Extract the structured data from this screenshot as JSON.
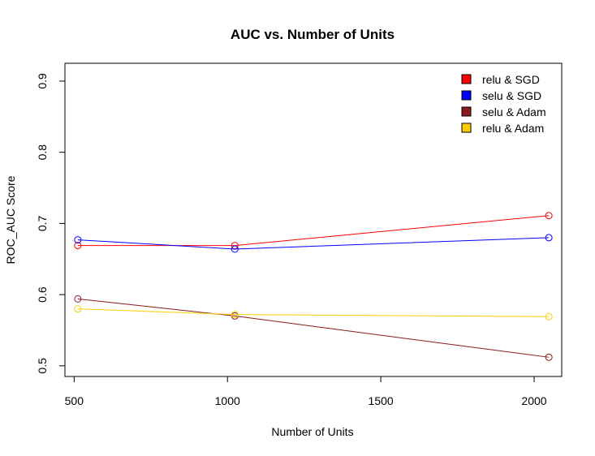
{
  "chart_data": {
    "type": "line",
    "title": "AUC vs. Number of Units",
    "xlabel": "Number of Units",
    "ylabel": "ROC_AUC Score",
    "xlim": [
      470,
      2090
    ],
    "ylim": [
      0.485,
      0.925
    ],
    "xticks": [
      500,
      1000,
      1500,
      2000
    ],
    "yticks": [
      0.5,
      0.6,
      0.7,
      0.8,
      0.9
    ],
    "x": [
      512,
      1024,
      2048
    ],
    "grid": false,
    "legend_position": "top-right",
    "series": [
      {
        "name": "relu & SGD",
        "color": "#ff0000",
        "values": [
          0.669,
          0.669,
          0.711
        ]
      },
      {
        "name": "selu & SGD",
        "color": "#0000ff",
        "values": [
          0.677,
          0.664,
          0.68
        ]
      },
      {
        "name": "selu & Adam",
        "color": "#8b1a1a",
        "values": [
          0.594,
          0.57,
          0.512
        ]
      },
      {
        "name": "relu & Adam",
        "color": "#ffcc00",
        "values": [
          0.58,
          0.572,
          0.569
        ]
      }
    ]
  }
}
